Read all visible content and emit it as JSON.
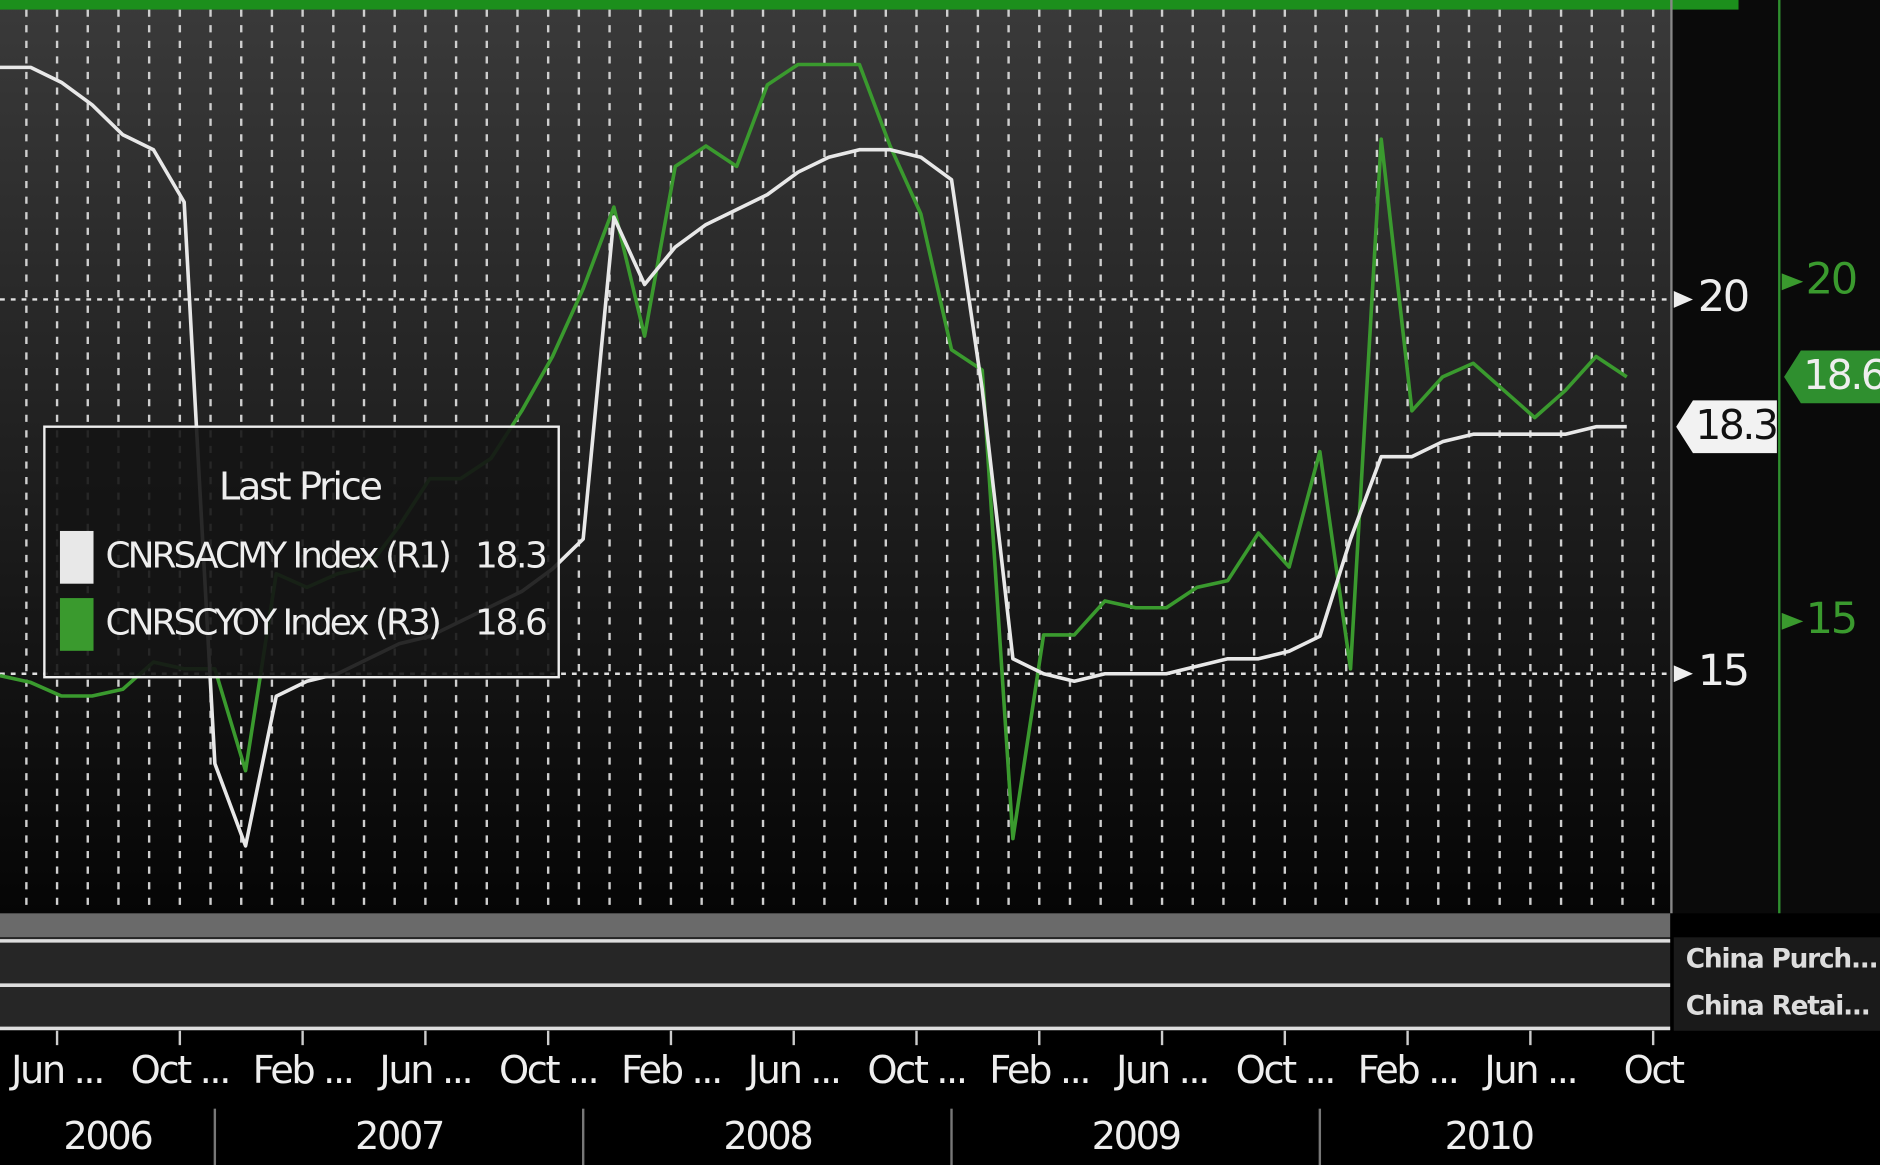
{
  "chart_data": {
    "type": "line",
    "legend_title": "Last Price",
    "categories": [
      null,
      "Jun ...",
      null,
      null,
      null,
      "Oct ...",
      null,
      null,
      null,
      "Feb ...",
      null,
      null,
      null,
      "Jun ...",
      null,
      null,
      null,
      "Oct ...",
      null,
      null,
      null,
      "Feb ...",
      null,
      null,
      null,
      "Jun ...",
      null,
      null,
      null,
      "Oct ...",
      null,
      null,
      null,
      "Feb ...",
      null,
      null,
      null,
      "Jun ...",
      null,
      null,
      null,
      "Oct ...",
      null,
      null,
      null,
      "Feb ...",
      null,
      null,
      null,
      "Jun ...",
      null,
      null,
      null,
      "Oct"
    ],
    "years": [
      "2006",
      "2007",
      "2008",
      "2009",
      "2010"
    ],
    "series": [
      {
        "name": "CNRSACMY Index (R1)",
        "color": "#e8e8e8",
        "values": [
          23.1,
          23.1,
          22.9,
          22.6,
          22.2,
          22.0,
          21.3,
          13.8,
          12.7,
          14.7,
          14.9,
          15.0,
          15.2,
          15.4,
          15.5,
          15.7,
          15.9,
          16.1,
          16.4,
          16.8,
          21.1,
          20.2,
          20.7,
          21.0,
          21.2,
          21.4,
          21.7,
          21.9,
          22.0,
          22.0,
          21.9,
          21.6,
          18.8,
          15.2,
          15.0,
          14.9,
          15.0,
          15.0,
          15.0,
          15.1,
          15.2,
          15.2,
          15.3,
          15.5,
          16.8,
          17.9,
          17.9,
          18.1,
          18.2,
          18.2,
          18.2,
          18.2,
          18.3,
          18.3
        ]
      },
      {
        "name": "CNRSCYOY Index (R3)",
        "color": "#3a9a2e",
        "axis": "y2",
        "values": [
          14.2,
          14.1,
          13.9,
          13.9,
          14.0,
          14.4,
          14.3,
          14.3,
          12.8,
          15.7,
          15.5,
          15.7,
          15.8,
          16.4,
          17.1,
          17.1,
          17.4,
          18.1,
          18.9,
          19.9,
          21.1,
          19.2,
          21.7,
          22.0,
          21.7,
          22.9,
          23.2,
          23.2,
          23.2,
          22.0,
          21.0,
          19.0,
          18.7,
          11.8,
          14.8,
          14.8,
          15.3,
          15.2,
          15.2,
          15.5,
          15.6,
          16.3,
          15.8,
          17.5,
          14.3,
          22.1,
          18.1,
          18.6,
          18.8,
          18.4,
          18.0,
          18.4,
          18.9,
          18.6
        ]
      }
    ],
    "ylim": [
      11.8,
      24
    ],
    "yticks": [
      15,
      20
    ],
    "y2lim": [
      10.7,
      24.15
    ],
    "y2ticks": [
      15,
      20
    ],
    "grid": true,
    "panels": [
      "China Purch...",
      "China Retai..."
    ]
  }
}
